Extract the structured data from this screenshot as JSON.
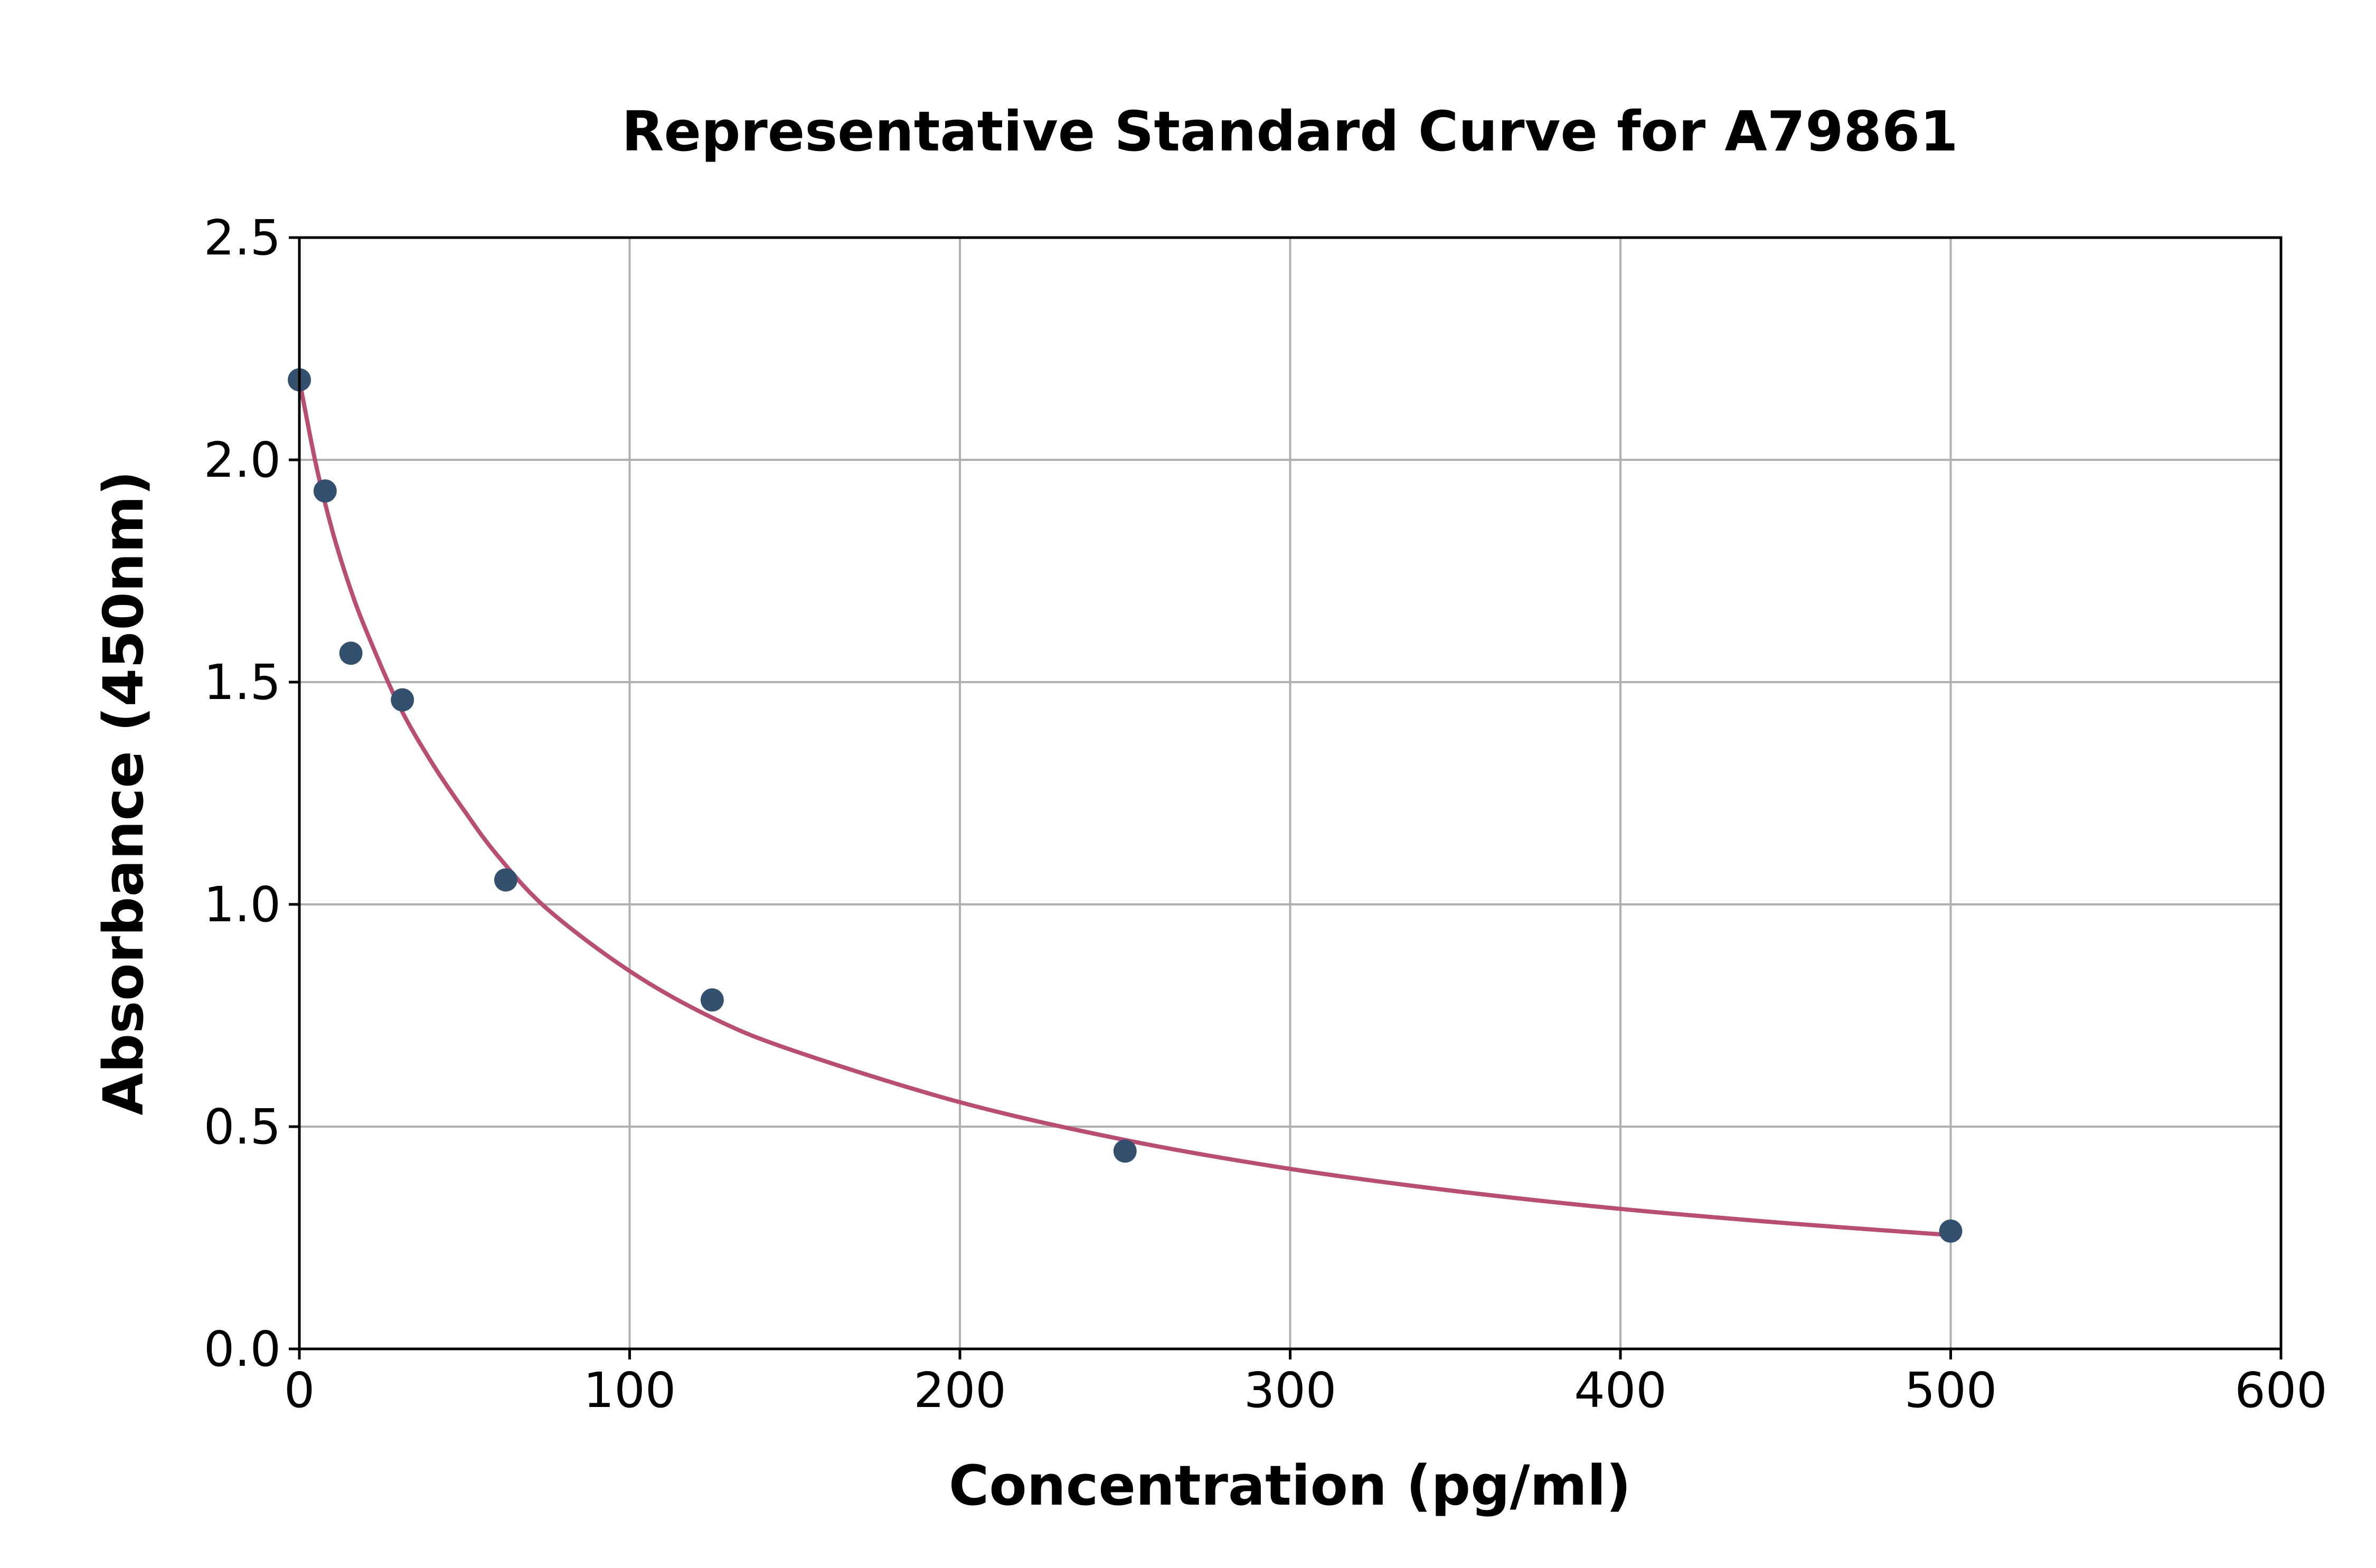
{
  "chart_data": {
    "type": "scatter",
    "title": "Representative Standard Curve for A79861",
    "xlabel": "Concentration (pg/ml)",
    "ylabel": "Absorbance (450nm)",
    "xlim": [
      0,
      600
    ],
    "ylim": [
      0,
      2.5
    ],
    "xticks": [
      "0",
      "100",
      "200",
      "300",
      "400",
      "500",
      "600"
    ],
    "yticks": [
      "0.0",
      "0.5",
      "1.0",
      "1.5",
      "2.0",
      "2.5"
    ],
    "grid": true,
    "colors": {
      "points": "#34506f",
      "curve": "#b84e73"
    },
    "series": [
      {
        "x": [
          0,
          7.8,
          15.6,
          31.2,
          62.5,
          125,
          250,
          500
        ],
        "y": [
          2.18,
          1.93,
          1.565,
          1.46,
          1.055,
          0.785,
          0.445,
          0.265
        ]
      }
    ],
    "fit_curve": {
      "x": [
        0,
        5,
        10,
        15,
        20,
        30,
        40,
        50,
        60,
        75,
        100,
        125,
        150,
        200,
        250,
        300,
        350,
        400,
        450,
        500
      ],
      "y": [
        2.18,
        1.99,
        1.84,
        1.72,
        1.62,
        1.45,
        1.32,
        1.21,
        1.11,
        0.99,
        0.85,
        0.745,
        0.67,
        0.555,
        0.47,
        0.405,
        0.355,
        0.315,
        0.283,
        0.256
      ]
    }
  }
}
